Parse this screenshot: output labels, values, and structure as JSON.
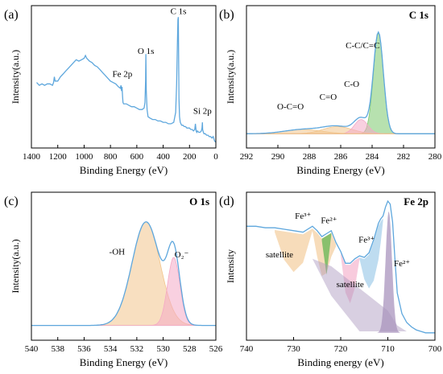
{
  "colors": {
    "axis": "#000000",
    "curve": "#5ea7dd",
    "background": "#e6e6e6",
    "fill_green": "#7cc86e",
    "fill_pink": "#f4a9c6",
    "fill_orange": "#f2c58c",
    "fill_blue": "#93c4e6",
    "fill_purple": "#a994bd",
    "fill_darkgreen": "#3fae3a"
  },
  "chart_data": [
    {
      "panel_label": "(a)",
      "type": "line",
      "title": "",
      "xlabel": "Binding Energy (eV)",
      "ylabel": "Intensity(a.u.)",
      "xlim": [
        1400,
        0
      ],
      "x_ticks": [
        1400,
        1200,
        1000,
        800,
        600,
        400,
        200,
        0
      ],
      "ylim": [
        0,
        1
      ],
      "show_y_ticks": false,
      "grid": false,
      "annotations": [
        {
          "text": "Fe 2p",
          "x": 710,
          "y": 0.5
        },
        {
          "text": "O 1s",
          "x": 531,
          "y": 0.66
        },
        {
          "text": "C 1s",
          "x": 284,
          "y": 0.94
        },
        {
          "text": "Si 2p",
          "x": 102,
          "y": 0.24
        }
      ],
      "series": [
        {
          "x": [
            1360,
            1340,
            1320,
            1300,
            1280,
            1260,
            1240,
            1232,
            1226,
            1220,
            1200,
            1180,
            1160,
            1140,
            1120,
            1100,
            1080,
            1060,
            1040,
            1020,
            1000,
            990,
            980,
            960,
            940,
            920,
            900,
            880,
            860,
            840,
            820,
            800,
            780,
            760,
            740,
            725,
            720,
            716,
            712,
            708,
            705,
            700,
            680,
            660,
            640,
            620,
            600,
            580,
            560,
            545,
            538,
            533,
            531,
            528,
            522,
            515,
            500,
            480,
            460,
            440,
            420,
            400,
            380,
            360,
            340,
            320,
            305,
            298,
            292,
            288,
            285,
            283,
            280,
            276,
            270,
            260,
            250,
            240,
            230,
            220,
            210,
            200,
            190,
            180,
            170,
            160,
            155,
            150,
            145,
            140,
            130,
            120,
            110,
            105,
            102,
            100,
            95,
            90,
            80,
            70,
            60,
            50,
            40,
            30,
            20,
            10,
            0
          ],
          "y": [
            0.46,
            0.44,
            0.45,
            0.44,
            0.45,
            0.45,
            0.44,
            0.46,
            0.5,
            0.47,
            0.47,
            0.5,
            0.52,
            0.54,
            0.56,
            0.58,
            0.6,
            0.62,
            0.61,
            0.62,
            0.63,
            0.65,
            0.63,
            0.61,
            0.6,
            0.58,
            0.57,
            0.55,
            0.53,
            0.51,
            0.49,
            0.47,
            0.46,
            0.45,
            0.43,
            0.42,
            0.44,
            0.4,
            0.43,
            0.36,
            0.32,
            0.31,
            0.31,
            0.3,
            0.29,
            0.29,
            0.28,
            0.27,
            0.27,
            0.28,
            0.32,
            0.48,
            0.66,
            0.4,
            0.27,
            0.22,
            0.21,
            0.2,
            0.2,
            0.19,
            0.19,
            0.18,
            0.18,
            0.17,
            0.17,
            0.18,
            0.25,
            0.45,
            0.72,
            0.9,
            0.92,
            0.7,
            0.35,
            0.22,
            0.18,
            0.16,
            0.16,
            0.15,
            0.15,
            0.14,
            0.14,
            0.14,
            0.13,
            0.13,
            0.12,
            0.13,
            0.17,
            0.12,
            0.11,
            0.12,
            0.11,
            0.11,
            0.12,
            0.14,
            0.18,
            0.13,
            0.11,
            0.1,
            0.1,
            0.09,
            0.09,
            0.08,
            0.08,
            0.07,
            0.08,
            0.05,
            0.04
          ]
        }
      ]
    },
    {
      "panel_label": "(b)",
      "type": "area",
      "title": "C 1s",
      "xlabel": "Binding Energy (eV)",
      "ylabel": "Intensity(a.u.)",
      "xlim": [
        292,
        280
      ],
      "x_ticks": [
        292,
        290,
        288,
        286,
        284,
        282,
        280
      ],
      "ylim": [
        0,
        1
      ],
      "show_y_ticks": false,
      "grid": false,
      "baseline": 0.1,
      "annotations": [
        {
          "text": "C-C/C=C",
          "x": 284.6,
          "y": 0.7
        },
        {
          "text": "C-O",
          "x": 285.3,
          "y": 0.43
        },
        {
          "text": "C=O",
          "x": 286.8,
          "y": 0.34
        },
        {
          "text": "O-C=O",
          "x": 289.2,
          "y": 0.27
        }
      ],
      "components": [
        {
          "label": "C-C/C=C",
          "center": 283.6,
          "fwhm": 0.75,
          "height": 0.71,
          "color": "#7cc86e"
        },
        {
          "label": "C-O",
          "center": 284.7,
          "fwhm": 1.0,
          "height": 0.1,
          "color": "#f4a9c6"
        },
        {
          "label": "C=O",
          "center": 286.2,
          "fwhm": 2.2,
          "height": 0.05,
          "color": "#f2c58c"
        },
        {
          "label": "O-C=O",
          "center": 288.4,
          "fwhm": 2.8,
          "height": 0.03,
          "color": "#f2c58c"
        }
      ]
    },
    {
      "panel_label": "(c)",
      "type": "area",
      "title": "O 1s",
      "xlabel": "Binding Energy (eV)",
      "ylabel": "Intensity(a.u.)",
      "xlim": [
        540,
        526
      ],
      "x_ticks": [
        540,
        538,
        536,
        534,
        532,
        530,
        528,
        526
      ],
      "ylim": [
        0,
        1
      ],
      "show_y_ticks": false,
      "grid": false,
      "baseline": 0.1,
      "annotations": [
        {
          "text": "-OH",
          "x": 533.5,
          "y": 0.58
        },
        {
          "text": "O₂⁻",
          "x": 528.6,
          "y": 0.56
        }
      ],
      "components": [
        {
          "label": "-OH",
          "center": 531.3,
          "fwhm": 2.5,
          "height": 0.7,
          "color": "#f2c58c"
        },
        {
          "label": "O2-",
          "center": 529.2,
          "fwhm": 1.1,
          "height": 0.46,
          "color": "#f4a9c6"
        }
      ]
    },
    {
      "panel_label": "(d)",
      "type": "area",
      "title": "Fe 2p",
      "xlabel": "Binding energy (eV)",
      "ylabel": "Intensity",
      "xlim": [
        740,
        700
      ],
      "x_ticks": [
        740,
        730,
        720,
        710,
        700
      ],
      "ylim": [
        0,
        1
      ],
      "show_y_ticks": false,
      "grid": false,
      "annotations": [
        {
          "text": "Fe³⁺",
          "x": 728,
          "y": 0.82
        },
        {
          "text": "Fe²⁺",
          "x": 722.5,
          "y": 0.79
        },
        {
          "text": "Fe³⁺",
          "x": 714.5,
          "y": 0.66
        },
        {
          "text": "Fe²⁺",
          "x": 707,
          "y": 0.5
        },
        {
          "text": "satellite",
          "x": 733,
          "y": 0.56
        },
        {
          "text": "satellite",
          "x": 718,
          "y": 0.36
        }
      ],
      "curve": {
        "x": [
          740,
          738,
          736,
          734,
          732,
          730,
          728,
          726,
          725,
          724,
          723,
          722,
          721,
          720,
          719,
          718,
          717,
          716,
          715,
          714,
          713,
          712,
          711.5,
          711,
          710.5,
          710,
          709.5,
          709,
          708.5,
          708,
          707,
          706,
          705,
          704,
          703,
          702,
          701,
          700
        ],
        "y": [
          0.77,
          0.77,
          0.76,
          0.76,
          0.75,
          0.74,
          0.73,
          0.77,
          0.74,
          0.7,
          0.72,
          0.74,
          0.66,
          0.6,
          0.52,
          0.52,
          0.55,
          0.57,
          0.56,
          0.59,
          0.68,
          0.79,
          0.82,
          0.84,
          0.9,
          0.94,
          0.92,
          0.8,
          0.55,
          0.32,
          0.18,
          0.12,
          0.09,
          0.07,
          0.06,
          0.05,
          0.05,
          0.05
        ]
      }
    }
  ]
}
